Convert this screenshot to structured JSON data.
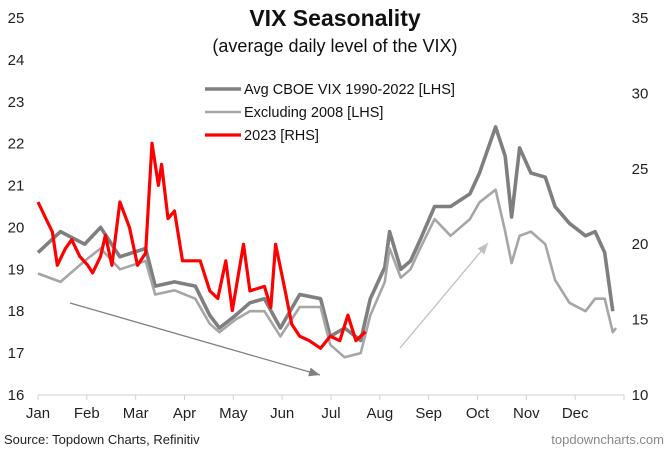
{
  "chart_data": {
    "type": "line",
    "title": "VIX Seasonality",
    "subtitle": "(average daily level of the VIX)",
    "x_tick_labels": [
      "Jan",
      "Feb",
      "Mar",
      "Apr",
      "May",
      "Jun",
      "Jul",
      "Aug",
      "Sep",
      "Oct",
      "Nov",
      "Dec"
    ],
    "y_left": {
      "range": [
        16,
        25
      ],
      "ticks": [
        "16",
        "17",
        "18",
        "19",
        "20",
        "21",
        "22",
        "23",
        "24",
        "25"
      ]
    },
    "y_right": {
      "range": [
        10,
        35
      ],
      "ticks": [
        "10",
        "15",
        "20",
        "25",
        "30",
        "35"
      ]
    },
    "grid": false,
    "legend_position": "top-center",
    "series": [
      {
        "name": "Avg CBOE VIX 1990-2022 [LHS]",
        "axis": "left",
        "color": "#7f7f7f",
        "x": [
          "01-01",
          "01-15",
          "01-30",
          "02-09",
          "02-21",
          "03-09",
          "03-15",
          "03-27",
          "04-09",
          "04-18",
          "04-24",
          "05-04",
          "05-13",
          "05-22",
          "06-01",
          "06-13",
          "06-26",
          "07-02",
          "07-11",
          "07-21",
          "07-27",
          "08-05",
          "08-08",
          "08-15",
          "08-21",
          "08-27",
          "09-05",
          "09-15",
          "09-27",
          "10-03",
          "10-13",
          "10-19",
          "10-23",
          "10-28",
          "11-04",
          "11-13",
          "11-19",
          "11-28",
          "12-08",
          "12-14",
          "12-20",
          "12-25"
        ],
        "values": [
          19.4,
          19.9,
          19.6,
          20.0,
          19.3,
          19.5,
          18.6,
          18.7,
          18.6,
          17.9,
          17.6,
          17.9,
          18.2,
          18.3,
          17.6,
          18.4,
          18.3,
          17.4,
          17.6,
          17.3,
          18.3,
          19.05,
          19.9,
          19.0,
          19.2,
          19.7,
          20.5,
          20.5,
          20.8,
          21.3,
          22.4,
          21.7,
          20.25,
          21.9,
          21.3,
          21.2,
          20.5,
          20.1,
          19.8,
          19.9,
          19.4,
          18.0
        ]
      },
      {
        "name": "Excluding 2008 [LHS]",
        "axis": "left",
        "color": "#a6a6a6",
        "x": [
          "01-01",
          "01-15",
          "01-30",
          "02-09",
          "02-21",
          "03-09",
          "03-15",
          "03-27",
          "04-09",
          "04-18",
          "04-24",
          "05-04",
          "05-13",
          "05-22",
          "06-01",
          "06-13",
          "06-26",
          "07-02",
          "07-11",
          "07-21",
          "07-27",
          "08-05",
          "08-08",
          "08-15",
          "08-21",
          "08-27",
          "09-05",
          "09-15",
          "09-27",
          "10-03",
          "10-13",
          "10-19",
          "10-23",
          "10-28",
          "11-04",
          "11-13",
          "11-19",
          "11-28",
          "12-08",
          "12-14",
          "12-20",
          "12-25",
          "12-27"
        ],
        "values": [
          18.9,
          18.7,
          19.2,
          19.5,
          19.0,
          19.2,
          18.4,
          18.5,
          18.3,
          17.7,
          17.5,
          17.8,
          18.0,
          18.0,
          17.4,
          18.1,
          18.1,
          17.2,
          16.9,
          17.0,
          17.9,
          18.7,
          19.5,
          18.8,
          19.0,
          19.5,
          20.2,
          19.8,
          20.2,
          20.6,
          20.9,
          19.9,
          19.15,
          19.8,
          19.9,
          19.6,
          18.75,
          18.2,
          18.0,
          18.3,
          18.3,
          17.5,
          17.6
        ]
      },
      {
        "name": "2023 [RHS]",
        "axis": "right",
        "color": "#ff0000",
        "x": [
          "01-01",
          "01-05",
          "01-10",
          "01-13",
          "01-18",
          "01-22",
          "01-27",
          "02-01",
          "02-04",
          "02-09",
          "02-12",
          "02-16",
          "02-21",
          "02-27",
          "03-04",
          "03-09",
          "03-13",
          "03-17",
          "03-19",
          "03-23",
          "03-27",
          "04-01",
          "04-06",
          "04-12",
          "04-18",
          "04-23",
          "04-28",
          "05-02",
          "05-09",
          "05-13",
          "05-22",
          "05-26",
          "05-29",
          "06-04",
          "06-08",
          "06-13",
          "06-19",
          "06-26",
          "07-02",
          "07-08",
          "07-13",
          "07-18",
          "07-24"
        ],
        "values": [
          22.8,
          21.9,
          20.8,
          18.6,
          19.7,
          20.3,
          19.2,
          18.6,
          18.1,
          19.2,
          20.6,
          18.6,
          22.8,
          21.1,
          18.6,
          19.4,
          26.7,
          23.9,
          25.3,
          21.7,
          22.2,
          18.9,
          18.9,
          18.9,
          16.9,
          16.4,
          18.9,
          15.6,
          20.0,
          16.9,
          17.2,
          15.8,
          20.0,
          16.9,
          14.7,
          13.9,
          13.6,
          13.1,
          13.9,
          13.6,
          15.3,
          13.6,
          14.2
        ]
      }
    ],
    "annotations": [
      {
        "type": "arrow",
        "color": "#808080",
        "meaning": "down-trend"
      },
      {
        "type": "arrow",
        "color": "#c0c0c0",
        "meaning": "up-trend"
      }
    ]
  },
  "footer": {
    "source": "Source: Topdown Charts, Refinitiv",
    "watermark": "topdowncharts.com"
  }
}
